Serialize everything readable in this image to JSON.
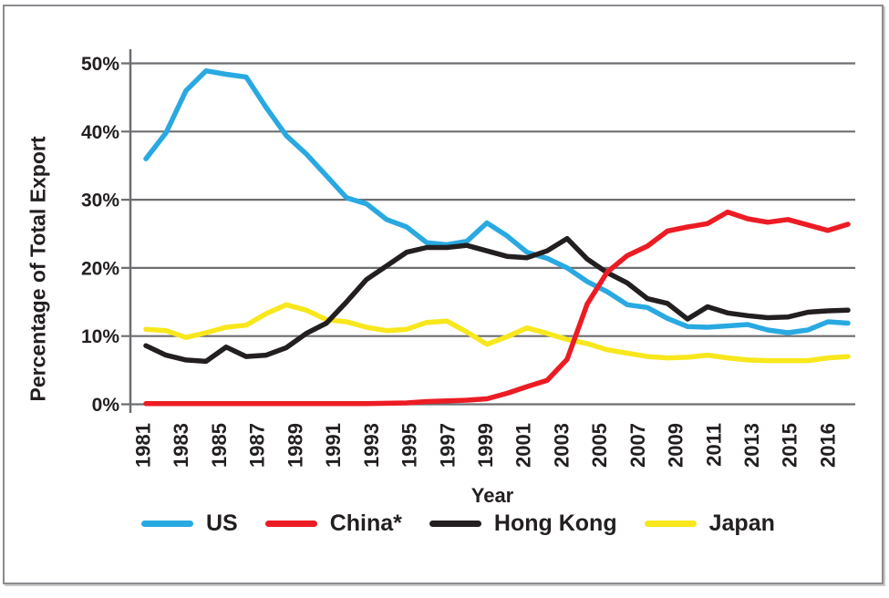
{
  "colors": {
    "grid": "#6D6E71",
    "text": "#231F20",
    "frame_border": "#8A8C8F",
    "background": "#FFFFFF"
  },
  "chart_data": {
    "type": "line",
    "title": "",
    "xlabel": "Year",
    "ylabel": "Percentage of Total Export",
    "ylim": [
      0,
      50
    ],
    "y_ticks": [
      0,
      10,
      20,
      30,
      40,
      50
    ],
    "y_tick_suffix": "%",
    "grid": true,
    "legend_position": "bottom",
    "x_tick_labels": [
      "1981",
      "1983",
      "1985",
      "1987",
      "1989",
      "1991",
      "1993",
      "1995",
      "1997",
      "1999",
      "2001",
      "2003",
      "2005",
      "2007",
      "2009",
      "2011",
      "2013",
      "2015",
      "2016"
    ],
    "x": [
      1981,
      1982,
      1983,
      1984,
      1985,
      1986,
      1987,
      1988,
      1989,
      1990,
      1991,
      1992,
      1993,
      1994,
      1995,
      1996,
      1997,
      1998,
      1999,
      2000,
      2001,
      2002,
      2003,
      2004,
      2005,
      2006,
      2007,
      2008,
      2009,
      2010,
      2011,
      2012,
      2013,
      2014,
      2015,
      2016
    ],
    "series": [
      {
        "name": "US",
        "color": "#29A9E1",
        "values": [
          36.0,
          39.8,
          46.0,
          48.9,
          48.4,
          48.0,
          43.5,
          39.4,
          36.7,
          33.5,
          30.3,
          29.4,
          27.1,
          26.0,
          23.7,
          23.4,
          23.9,
          26.6,
          24.7,
          22.3,
          21.4,
          20.0,
          18.0,
          16.5,
          14.6,
          14.2,
          12.6,
          11.4,
          11.3,
          11.5,
          11.7,
          10.9,
          10.5,
          10.9,
          12.1,
          11.9
        ]
      },
      {
        "name": "China*",
        "color": "#EC1C24",
        "values": [
          0.1,
          0.1,
          0.1,
          0.1,
          0.1,
          0.1,
          0.1,
          0.1,
          0.1,
          0.1,
          0.1,
          0.1,
          0.15,
          0.2,
          0.4,
          0.5,
          0.6,
          0.8,
          1.6,
          2.6,
          3.5,
          6.6,
          14.7,
          19.4,
          21.8,
          23.2,
          25.4,
          26.0,
          26.5,
          28.2,
          27.2,
          26.7,
          27.1,
          26.3,
          25.5,
          26.4
        ]
      },
      {
        "name": "Hong Kong",
        "color": "#231F20",
        "values": [
          8.6,
          7.2,
          6.5,
          6.3,
          8.4,
          7.0,
          7.2,
          8.3,
          10.4,
          11.9,
          15.0,
          18.3,
          20.3,
          22.3,
          23.0,
          23.0,
          23.3,
          22.5,
          21.7,
          21.5,
          22.5,
          24.3,
          21.3,
          19.3,
          17.8,
          15.5,
          14.8,
          12.5,
          14.3,
          13.4,
          13.0,
          12.7,
          12.8,
          13.5,
          13.7,
          13.8
        ]
      },
      {
        "name": "Japan",
        "color": "#F8E71C",
        "values": [
          11.0,
          10.8,
          9.8,
          10.5,
          11.3,
          11.6,
          13.3,
          14.6,
          13.8,
          12.4,
          12.1,
          11.3,
          10.8,
          11.0,
          12.0,
          12.2,
          10.6,
          8.8,
          9.9,
          11.2,
          10.4,
          9.5,
          8.9,
          8.0,
          7.5,
          7.0,
          6.8,
          6.9,
          7.2,
          6.8,
          6.5,
          6.4,
          6.4,
          6.4,
          6.8,
          7.0
        ]
      }
    ],
    "z_order": [
      0,
      3,
      2,
      1
    ]
  }
}
